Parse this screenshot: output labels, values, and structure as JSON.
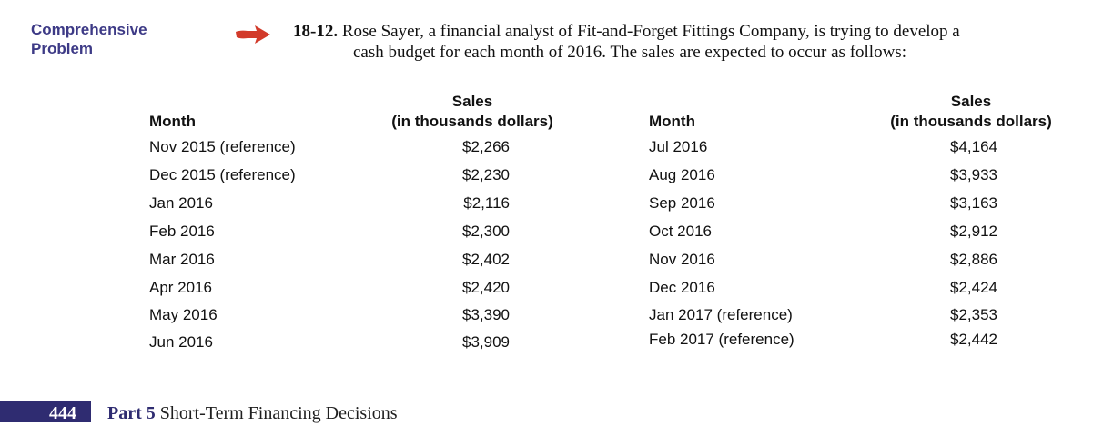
{
  "side_label": {
    "line1": "Comprehensive",
    "line2": "Problem"
  },
  "arrow_icon": "red-arrow-icon",
  "problem": {
    "number": "18-12.",
    "line1": "Rose Sayer, a financial analyst of Fit-and-Forget Fittings Company, is trying to develop a",
    "line2": "cash budget for each month of 2016. The sales are expected to occur as follows:"
  },
  "table_headers": {
    "month": "Month",
    "sales_line1": "Sales",
    "sales_line2": "(in thousands dollars)"
  },
  "left_rows": [
    {
      "month": "Nov 2015 (reference)",
      "sales": "$2,266"
    },
    {
      "month": "Dec 2015 (reference)",
      "sales": "$2,230"
    },
    {
      "month": "Jan 2016",
      "sales": "$2,116"
    },
    {
      "month": "Feb 2016",
      "sales": "$2,300"
    },
    {
      "month": "Mar 2016",
      "sales": "$2,402"
    },
    {
      "month": "Apr 2016",
      "sales": "$2,420"
    },
    {
      "month": "May 2016",
      "sales": "$3,390"
    },
    {
      "month": "Jun 2016",
      "sales": "$3,909"
    }
  ],
  "right_rows": [
    {
      "month": "Jul 2016",
      "sales": "$4,164"
    },
    {
      "month": "Aug 2016",
      "sales": "$3,933"
    },
    {
      "month": "Sep 2016",
      "sales": "$3,163"
    },
    {
      "month": "Oct 2016",
      "sales": "$2,912"
    },
    {
      "month": "Nov 2016",
      "sales": "$2,886"
    },
    {
      "month": "Dec 2016",
      "sales": "$2,424"
    },
    {
      "month": "Jan 2017 (reference)",
      "sales": "$2,353"
    },
    {
      "month": "Feb 2017 (reference)",
      "sales": "$2,442"
    }
  ],
  "footer": {
    "page_number": "444",
    "part_label": "Part 5",
    "part_title": "Short-Term Financing Decisions"
  },
  "colors": {
    "heading_blue": "#3d3a86",
    "footer_navy": "#2f2c71",
    "arrow_red": "#d23a2a"
  }
}
